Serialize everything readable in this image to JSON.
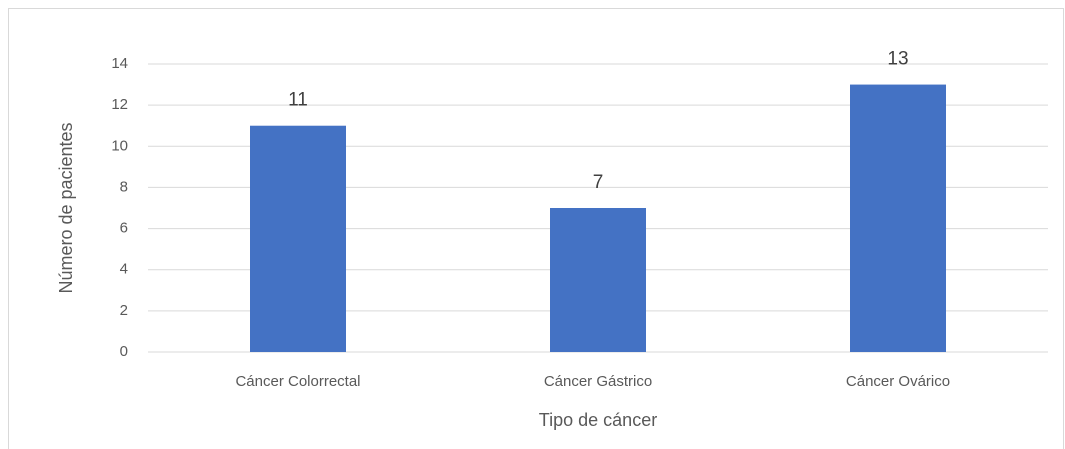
{
  "chart_data": {
    "type": "bar",
    "categories": [
      "Cáncer Colorrectal",
      "Cáncer Gástrico",
      "Cáncer Ovárico"
    ],
    "values": [
      11,
      7,
      13
    ],
    "color": "#4472c4",
    "xlabel": "Tipo de cáncer",
    "ylabel": "Número de pacientes",
    "ylim": [
      0,
      14
    ],
    "yticks": [
      0,
      2,
      4,
      6,
      8,
      10,
      12,
      14
    ],
    "grid": true,
    "data_labels": true
  }
}
